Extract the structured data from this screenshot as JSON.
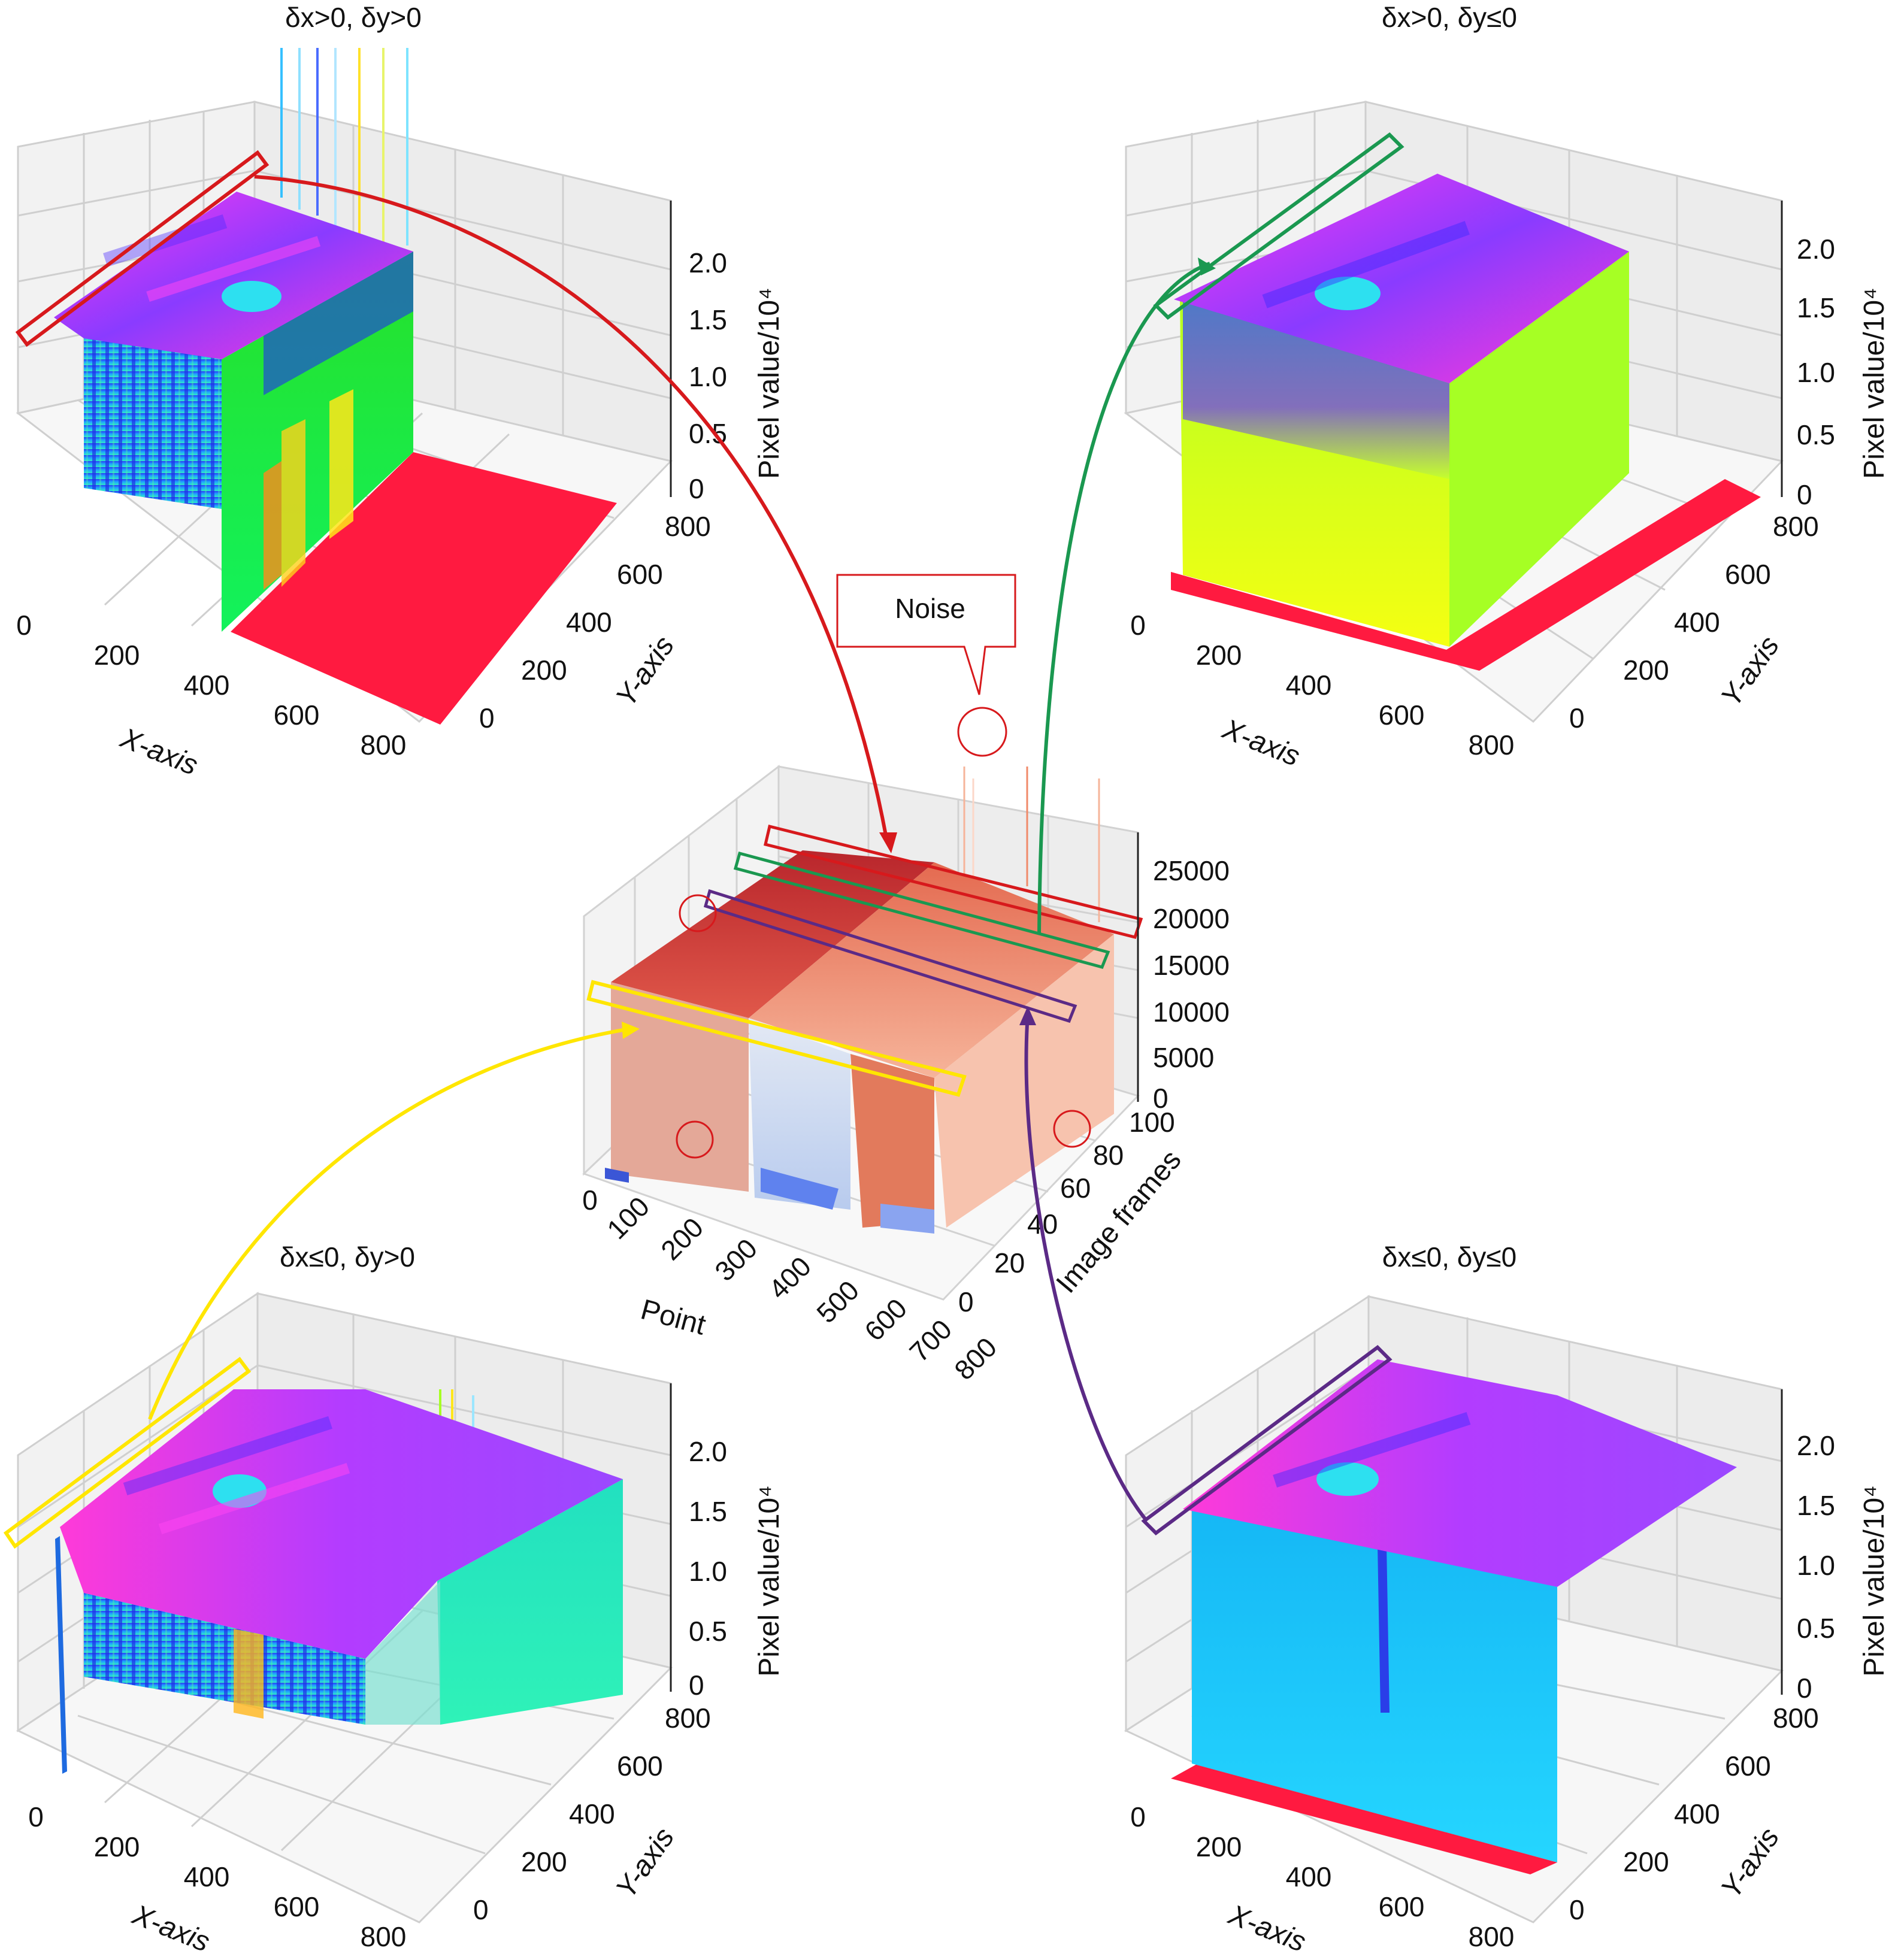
{
  "chart_data": [
    {
      "id": "top-left",
      "type": "surface3d",
      "title": "δx>0, δy>0",
      "xlabel": "X-axis",
      "ylabel": "Y-axis",
      "zlabel": "Pixel value/10⁴",
      "x_ticks": [
        "0",
        "200",
        "400",
        "600",
        "800"
      ],
      "y_ticks": [
        "0",
        "200",
        "400",
        "600",
        "800"
      ],
      "z_ticks": [
        "0",
        "0.5",
        "1.0",
        "1.5",
        "2.0"
      ],
      "xlim": [
        0,
        800
      ],
      "ylim": [
        0,
        800
      ],
      "zlim": [
        0,
        2.2
      ],
      "grid": true,
      "highlight_color": "#d7191c"
    },
    {
      "id": "top-right",
      "type": "surface3d",
      "title": "δx>0, δy≤0",
      "xlabel": "X-axis",
      "ylabel": "Y-axis",
      "zlabel": "Pixel value/10⁴",
      "x_ticks": [
        "0",
        "200",
        "400",
        "600",
        "800"
      ],
      "y_ticks": [
        "0",
        "200",
        "400",
        "600",
        "800"
      ],
      "z_ticks": [
        "0",
        "0.5",
        "1.0",
        "1.5",
        "2.0"
      ],
      "xlim": [
        0,
        800
      ],
      "ylim": [
        0,
        800
      ],
      "zlim": [
        0,
        2.2
      ],
      "grid": true,
      "highlight_color": "#1a9850"
    },
    {
      "id": "center",
      "type": "surface3d",
      "xlabel": "Point",
      "ylabel": "Image frames",
      "x_ticks": [
        "0",
        "100",
        "200",
        "300",
        "400",
        "500",
        "600",
        "700",
        "800"
      ],
      "y_ticks": [
        "0",
        "20",
        "40",
        "60",
        "80",
        "100"
      ],
      "z_ticks": [
        "0",
        "5000",
        "10000",
        "15000",
        "20000",
        "25000"
      ],
      "xlim": [
        0,
        800
      ],
      "ylim": [
        0,
        100
      ],
      "zlim": [
        0,
        25000
      ],
      "grid": true,
      "annotation": "Noise"
    },
    {
      "id": "bottom-left",
      "type": "surface3d",
      "title": "δx≤0, δy>0",
      "xlabel": "X-axis",
      "ylabel": "Y-axis",
      "zlabel": "Pixel value/10⁴",
      "x_ticks": [
        "0",
        "200",
        "400",
        "600",
        "800"
      ],
      "y_ticks": [
        "0",
        "200",
        "400",
        "600",
        "800"
      ],
      "z_ticks": [
        "0",
        "0.5",
        "1.0",
        "1.5",
        "2.0"
      ],
      "xlim": [
        0,
        800
      ],
      "ylim": [
        0,
        800
      ],
      "zlim": [
        0,
        2.2
      ],
      "grid": true,
      "highlight_color": "#ffe600"
    },
    {
      "id": "bottom-right",
      "type": "surface3d",
      "title": "δx≤0, δy≤0",
      "xlabel": "X-axis",
      "ylabel": "Y-axis",
      "zlabel": "Pixel value/10⁴",
      "x_ticks": [
        "0",
        "200",
        "400",
        "600",
        "800"
      ],
      "y_ticks": [
        "0",
        "200",
        "400",
        "600",
        "800"
      ],
      "z_ticks": [
        "0",
        "0.5",
        "1.0",
        "1.5",
        "2.0"
      ],
      "xlim": [
        0,
        800
      ],
      "ylim": [
        0,
        800
      ],
      "zlim": [
        0,
        2.2
      ],
      "grid": true,
      "highlight_color": "#5b2a86"
    }
  ],
  "colors": {
    "red": "#d7191c",
    "green": "#1a9850",
    "yellow": "#ffe600",
    "purple": "#5b2a86",
    "magenta": "#ee22ee",
    "blue": "#1b3ef0",
    "lime": "#9cff22",
    "cyan": "#22d3f0",
    "floor_red": "#ff1a40",
    "coolwarm_red": "#c0392b",
    "coolwarm_salmon": "#f08a6a",
    "coolwarm_pale": "#d6e2f5",
    "coolwarm_blue": "#5577e8"
  }
}
